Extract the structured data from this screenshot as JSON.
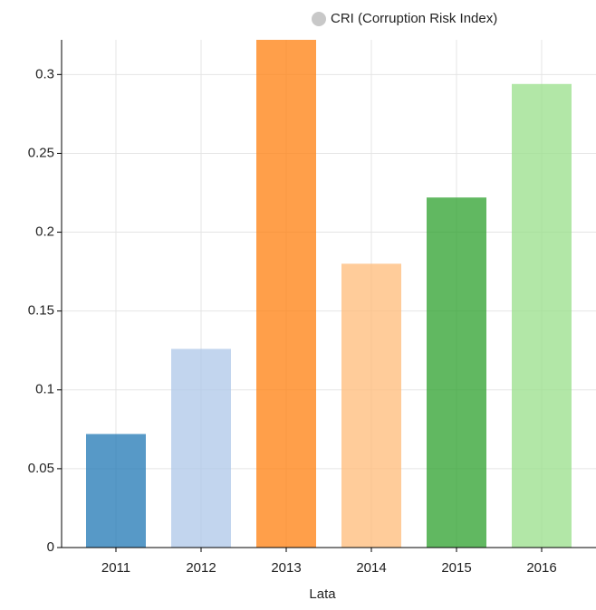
{
  "chart_data": {
    "type": "bar",
    "categories": [
      "2011",
      "2012",
      "2013",
      "2014",
      "2015",
      "2016"
    ],
    "series": [
      {
        "name": "CRI (Corruption Risk Index)",
        "color": "#c8c8c8",
        "values": [
          0.072,
          0.126,
          0.322,
          0.18,
          0.222,
          0.294
        ]
      }
    ],
    "bar_colors": [
      "#1f77b4",
      "#aec7e8",
      "#ff7f0e",
      "#ffbb78",
      "#2ca02c",
      "#98df8a"
    ],
    "x_label": "Lata",
    "ylim": [
      0,
      0.322
    ],
    "yticks": [
      0,
      0.05,
      0.1,
      0.15,
      0.2,
      0.25,
      0.3
    ],
    "grid": true
  }
}
